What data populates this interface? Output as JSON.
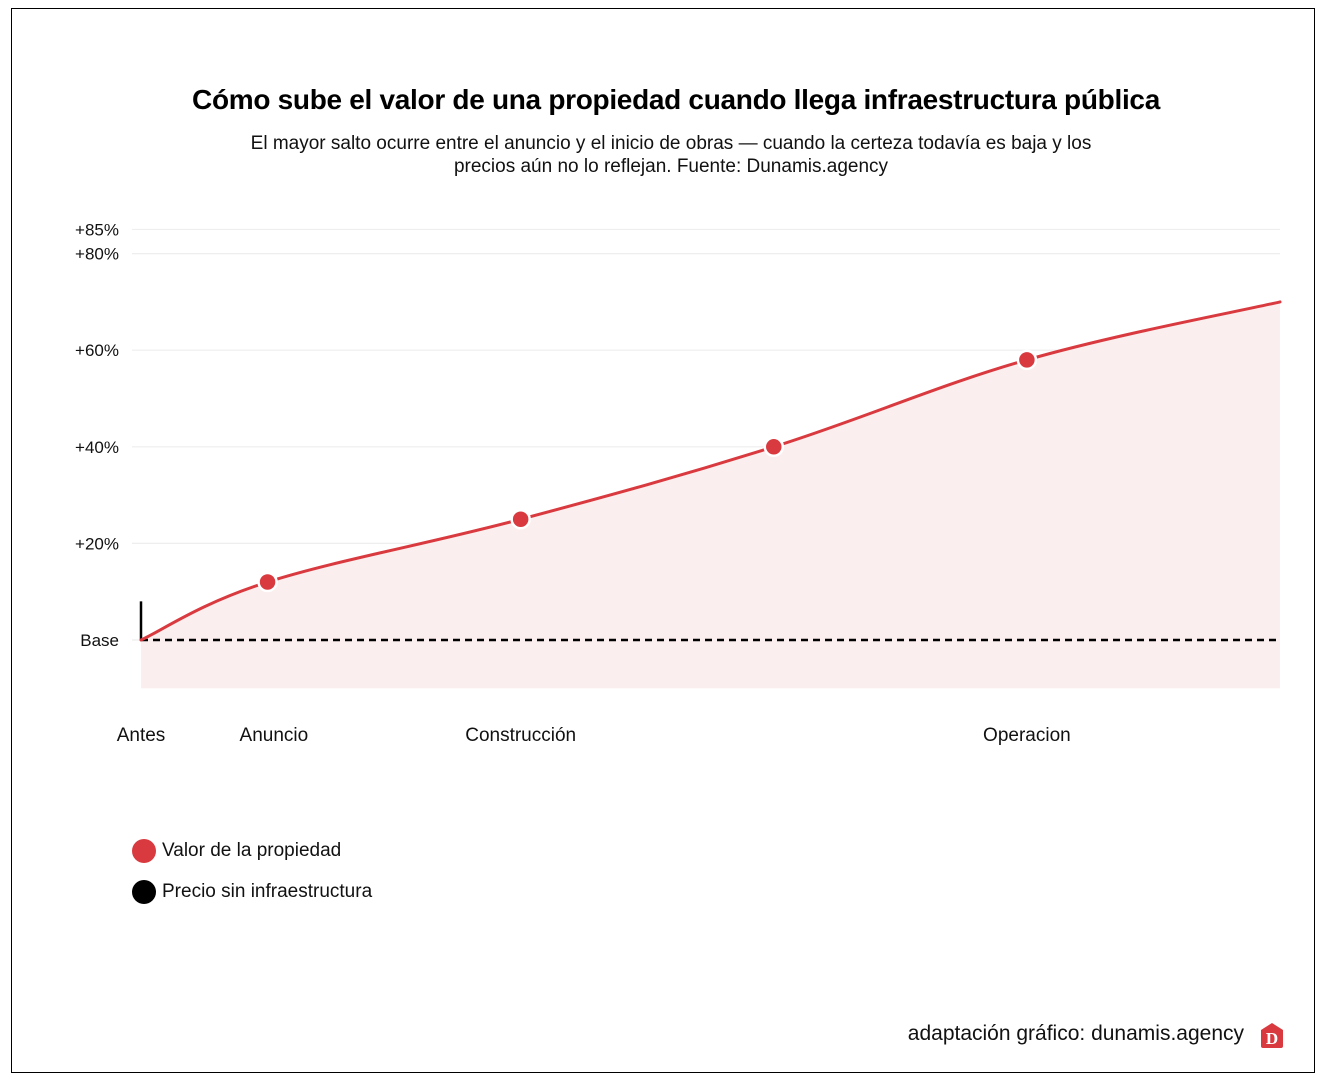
{
  "title": "Cómo sube el valor de una propiedad cuando llega infraestructura pública",
  "subtitle_line1": "El mayor salto ocurre entre el anuncio y el inicio de obras — cuando la certeza todavía es baja y los",
  "subtitle_line2": "precios aún no lo reflejan. Fuente: Dunamis.agency",
  "credit": "adaptación gráfico: dunamis.agency",
  "logo_letter": "D",
  "colors": {
    "accent": "#d93a3f",
    "area_fill": "#faeeee",
    "baseline": "#000000",
    "grid": "#eeeeee"
  },
  "chart_data": {
    "type": "area",
    "title": "Cómo sube el valor de una propiedad cuando llega infraestructura pública",
    "xlabel": "",
    "ylabel": "",
    "ylim": [
      -10,
      85
    ],
    "xlim": [
      0,
      9
    ],
    "grid": true,
    "y_ticks": [
      {
        "value": 0,
        "label": "Base"
      },
      {
        "value": 20,
        "label": "+20%"
      },
      {
        "value": 40,
        "label": "+40%"
      },
      {
        "value": 60,
        "label": "+60%"
      },
      {
        "value": 80,
        "label": "+80%"
      },
      {
        "value": 85,
        "label": "+85%"
      }
    ],
    "x_ticks": [
      {
        "value": 0,
        "label": "Antes"
      },
      {
        "value": 1.05,
        "label": "Anuncio"
      },
      {
        "value": 3,
        "label": "Construcción"
      },
      {
        "value": 7,
        "label": "Operacion"
      }
    ],
    "series": [
      {
        "name": "Valor de la propiedad",
        "color": "#d93a3f",
        "x": [
          0,
          1,
          3,
          5,
          7,
          9
        ],
        "values": [
          0,
          12,
          25,
          40,
          58,
          70
        ],
        "markers": [
          false,
          true,
          true,
          true,
          true,
          false
        ]
      },
      {
        "name": "Precio sin infraestructura",
        "color": "#000000",
        "x": [
          0,
          9
        ],
        "values": [
          0,
          0
        ],
        "style": "dashed"
      }
    ],
    "annotations": [
      {
        "type": "vertical-marker",
        "x": 0,
        "from": 0,
        "to": 8,
        "color": "#000000"
      }
    ],
    "legend": {
      "position": "bottom-left",
      "entries": [
        {
          "label": "Valor de la propiedad",
          "color": "#d93a3f"
        },
        {
          "label": "Precio sin infraestructura",
          "color": "#000000"
        }
      ]
    }
  }
}
